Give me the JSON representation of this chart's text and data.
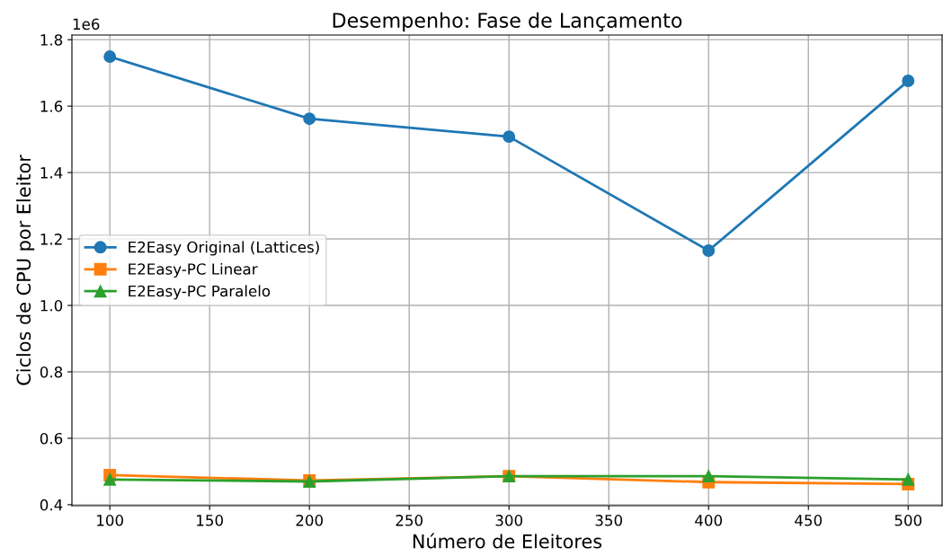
{
  "chart_data": {
    "type": "line",
    "title": "Desempenho: Fase de Lançamento",
    "xlabel": "Número de Eleitores",
    "ylabel": "Ciclos de CPU por Eleitor",
    "annotations": [
      "1e6"
    ],
    "x": [
      100,
      200,
      300,
      400,
      500
    ],
    "series": [
      {
        "name": "E2Easy Original (Lattices)",
        "color": "#1f77b4",
        "marker": "circle",
        "values": [
          1.749,
          1.562,
          1.508,
          1.165,
          1.676
        ]
      },
      {
        "name": "E2Easy-PC Linear",
        "color": "#ff7f0e",
        "marker": "square",
        "values": [
          0.489,
          0.473,
          0.486,
          0.468,
          0.462
        ]
      },
      {
        "name": "E2Easy-PC Paralelo",
        "color": "#2ca02c",
        "marker": "triangle",
        "values": [
          0.476,
          0.47,
          0.486,
          0.486,
          0.476
        ]
      }
    ],
    "xlim": [
      81,
      517
    ],
    "xticks": [
      100,
      150,
      200,
      250,
      300,
      350,
      400,
      450,
      500
    ],
    "ylim": [
      0.397,
      1.814
    ],
    "yticks": [
      0.4,
      0.6,
      0.8,
      {
        "value": 1,
        "label": "1.0"
      },
      1.2,
      1.4,
      1.6,
      1.8
    ],
    "grid": true,
    "legend": "center left",
    "line_style": "solid"
  }
}
